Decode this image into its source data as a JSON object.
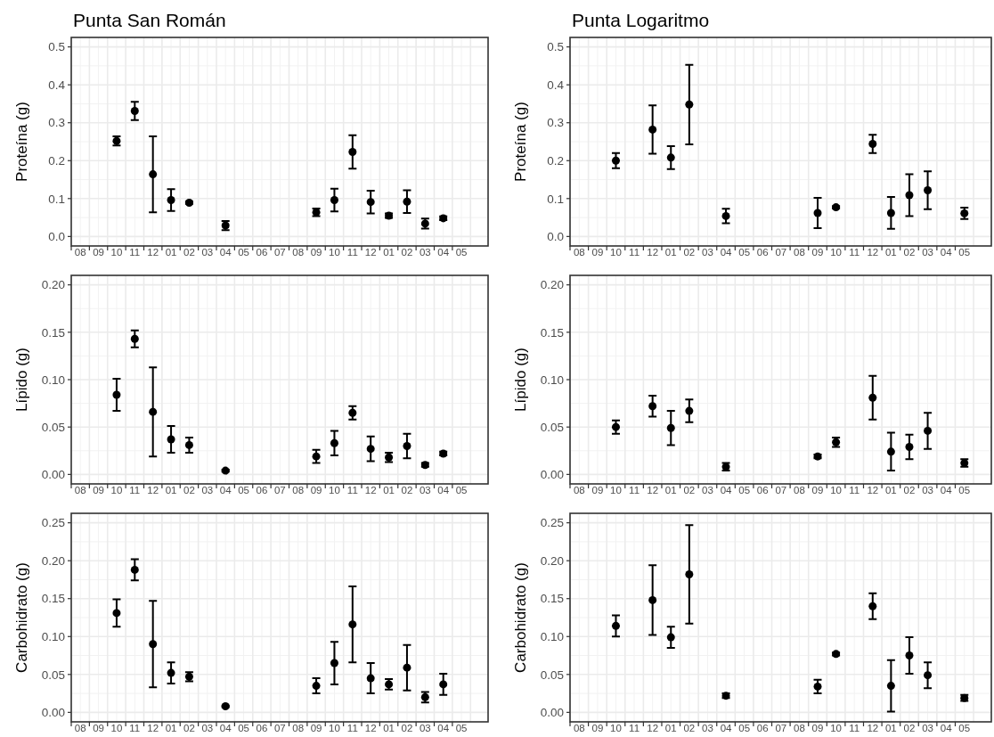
{
  "chart_data": [
    {
      "type": "scatter",
      "title": "Punta San Román",
      "ylabel": "Proteína (g)",
      "color": "#000000",
      "marker": "circle",
      "grid": true,
      "ylim": [
        -0.025,
        0.525
      ],
      "categories": [
        "08",
        "09",
        "10",
        "11",
        "12",
        "01",
        "02",
        "03",
        "04",
        "05",
        "06",
        "07",
        "08",
        "09",
        "10",
        "11",
        "12",
        "01",
        "02",
        "03",
        "04",
        "05"
      ],
      "yticks": [
        {
          "value": 0,
          "label": "0.0"
        },
        {
          "value": 0.1,
          "label": "0.1"
        },
        {
          "value": 0.2,
          "label": "0.2"
        },
        {
          "value": 0.3,
          "label": "0.3"
        },
        {
          "value": 0.4,
          "label": "0.4"
        },
        {
          "value": 0.5,
          "label": "0.5"
        }
      ],
      "values": [
        null,
        null,
        0.252,
        0.331,
        0.164,
        0.096,
        0.089,
        null,
        0.029,
        null,
        null,
        null,
        null,
        0.064,
        0.096,
        0.223,
        0.091,
        0.055,
        0.092,
        0.034,
        0.048,
        null
      ],
      "errors": [
        null,
        null,
        0.012,
        0.024,
        0.1,
        0.029,
        0.003,
        null,
        0.012,
        null,
        null,
        null,
        null,
        0.01,
        0.03,
        0.044,
        0.03,
        0.006,
        0.03,
        0.013,
        0.005,
        null
      ]
    },
    {
      "type": "scatter",
      "title": "Punta Logaritmo",
      "ylabel": "Proteína (g)",
      "color": "#000000",
      "marker": "circle",
      "grid": true,
      "ylim": [
        -0.025,
        0.525
      ],
      "categories": [
        "08",
        "09",
        "10",
        "11",
        "12",
        "01",
        "02",
        "03",
        "04",
        "05",
        "06",
        "07",
        "08",
        "09",
        "10",
        "11",
        "12",
        "01",
        "02",
        "03",
        "04",
        "05"
      ],
      "yticks": [
        {
          "value": 0,
          "label": "0.0"
        },
        {
          "value": 0.1,
          "label": "0.1"
        },
        {
          "value": 0.2,
          "label": "0.2"
        },
        {
          "value": 0.3,
          "label": "0.3"
        },
        {
          "value": 0.4,
          "label": "0.4"
        },
        {
          "value": 0.5,
          "label": "0.5"
        }
      ],
      "values": [
        null,
        null,
        0.2,
        null,
        0.282,
        0.208,
        0.348,
        null,
        0.054,
        null,
        null,
        null,
        null,
        0.062,
        0.077,
        null,
        0.244,
        0.062,
        0.109,
        0.122,
        null,
        0.061
      ],
      "errors": [
        null,
        null,
        0.02,
        null,
        0.064,
        0.03,
        0.105,
        null,
        0.019,
        null,
        null,
        null,
        null,
        0.04,
        0.003,
        null,
        0.024,
        0.042,
        0.055,
        0.05,
        null,
        0.015
      ]
    },
    {
      "type": "scatter",
      "ylabel": "Lípido (g)",
      "color": "#000000",
      "marker": "circle",
      "grid": true,
      "ylim": [
        -0.01,
        0.21
      ],
      "categories": [
        "08",
        "09",
        "10",
        "11",
        "12",
        "01",
        "02",
        "03",
        "04",
        "05",
        "06",
        "07",
        "08",
        "09",
        "10",
        "11",
        "12",
        "01",
        "02",
        "03",
        "04",
        "05"
      ],
      "yticks": [
        {
          "value": 0,
          "label": "0.00"
        },
        {
          "value": 0.05,
          "label": "0.05"
        },
        {
          "value": 0.1,
          "label": "0.10"
        },
        {
          "value": 0.15,
          "label": "0.15"
        },
        {
          "value": 0.2,
          "label": "0.20"
        }
      ],
      "values": [
        null,
        null,
        0.084,
        0.143,
        0.066,
        0.037,
        0.031,
        null,
        0.004,
        null,
        null,
        null,
        null,
        0.019,
        0.033,
        0.065,
        0.027,
        0.018,
        0.03,
        0.01,
        0.022,
        null
      ],
      "errors": [
        null,
        null,
        0.017,
        0.009,
        0.047,
        0.014,
        0.008,
        null,
        0.001,
        null,
        null,
        null,
        null,
        0.007,
        0.013,
        0.007,
        0.013,
        0.005,
        0.013,
        0.002,
        0.002,
        null
      ]
    },
    {
      "type": "scatter",
      "ylabel": "Lípido (g)",
      "color": "#000000",
      "marker": "circle",
      "grid": true,
      "ylim": [
        -0.01,
        0.21
      ],
      "categories": [
        "08",
        "09",
        "10",
        "11",
        "12",
        "01",
        "02",
        "03",
        "04",
        "05",
        "06",
        "07",
        "08",
        "09",
        "10",
        "11",
        "12",
        "01",
        "02",
        "03",
        "04",
        "05"
      ],
      "yticks": [
        {
          "value": 0,
          "label": "0.00"
        },
        {
          "value": 0.05,
          "label": "0.05"
        },
        {
          "value": 0.1,
          "label": "0.10"
        },
        {
          "value": 0.15,
          "label": "0.15"
        },
        {
          "value": 0.2,
          "label": "0.20"
        }
      ],
      "values": [
        null,
        null,
        0.05,
        null,
        0.072,
        0.049,
        0.067,
        null,
        0.008,
        null,
        null,
        null,
        null,
        0.019,
        0.034,
        null,
        0.081,
        0.024,
        0.029,
        0.046,
        null,
        0.012
      ],
      "errors": [
        null,
        null,
        0.007,
        null,
        0.011,
        0.018,
        0.012,
        null,
        0.004,
        null,
        null,
        null,
        null,
        0.002,
        0.005,
        null,
        0.023,
        0.02,
        0.013,
        0.019,
        null,
        0.004
      ]
    },
    {
      "type": "scatter",
      "ylabel": "Carbohidrato (g)",
      "color": "#000000",
      "marker": "circle",
      "grid": true,
      "ylim": [
        -0.0125,
        0.2625
      ],
      "categories": [
        "08",
        "09",
        "10",
        "11",
        "12",
        "01",
        "02",
        "03",
        "04",
        "05",
        "06",
        "07",
        "08",
        "09",
        "10",
        "11",
        "12",
        "01",
        "02",
        "03",
        "04",
        "05"
      ],
      "yticks": [
        {
          "value": 0,
          "label": "0.00"
        },
        {
          "value": 0.05,
          "label": "0.05"
        },
        {
          "value": 0.1,
          "label": "0.10"
        },
        {
          "value": 0.15,
          "label": "0.15"
        },
        {
          "value": 0.2,
          "label": "0.20"
        },
        {
          "value": 0.25,
          "label": "0.25"
        }
      ],
      "values": [
        null,
        null,
        0.131,
        0.188,
        0.09,
        0.052,
        0.047,
        null,
        0.008,
        null,
        null,
        null,
        null,
        0.035,
        0.065,
        0.116,
        0.045,
        0.037,
        0.059,
        0.02,
        0.037,
        null
      ],
      "errors": [
        null,
        null,
        0.018,
        0.014,
        0.057,
        0.014,
        0.006,
        null,
        0.001,
        null,
        null,
        null,
        null,
        0.01,
        0.028,
        0.05,
        0.02,
        0.007,
        0.03,
        0.007,
        0.014,
        null
      ]
    },
    {
      "type": "scatter",
      "ylabel": "Carbohidrato (g)",
      "color": "#000000",
      "marker": "circle",
      "grid": true,
      "ylim": [
        -0.0125,
        0.2625
      ],
      "categories": [
        "08",
        "09",
        "10",
        "11",
        "12",
        "01",
        "02",
        "03",
        "04",
        "05",
        "06",
        "07",
        "08",
        "09",
        "10",
        "11",
        "12",
        "01",
        "02",
        "03",
        "04",
        "05"
      ],
      "yticks": [
        {
          "value": 0,
          "label": "0.00"
        },
        {
          "value": 0.05,
          "label": "0.05"
        },
        {
          "value": 0.1,
          "label": "0.10"
        },
        {
          "value": 0.15,
          "label": "0.15"
        },
        {
          "value": 0.2,
          "label": "0.20"
        },
        {
          "value": 0.25,
          "label": "0.25"
        }
      ],
      "values": [
        null,
        null,
        0.114,
        null,
        0.148,
        0.099,
        0.182,
        null,
        0.022,
        null,
        null,
        null,
        null,
        0.034,
        0.077,
        null,
        0.14,
        0.035,
        0.075,
        0.049,
        null,
        0.019
      ],
      "errors": [
        null,
        null,
        0.014,
        null,
        0.046,
        0.014,
        0.065,
        null,
        0.003,
        null,
        null,
        null,
        null,
        0.009,
        0.002,
        null,
        0.017,
        0.034,
        0.024,
        0.017,
        null,
        0.004
      ]
    }
  ]
}
